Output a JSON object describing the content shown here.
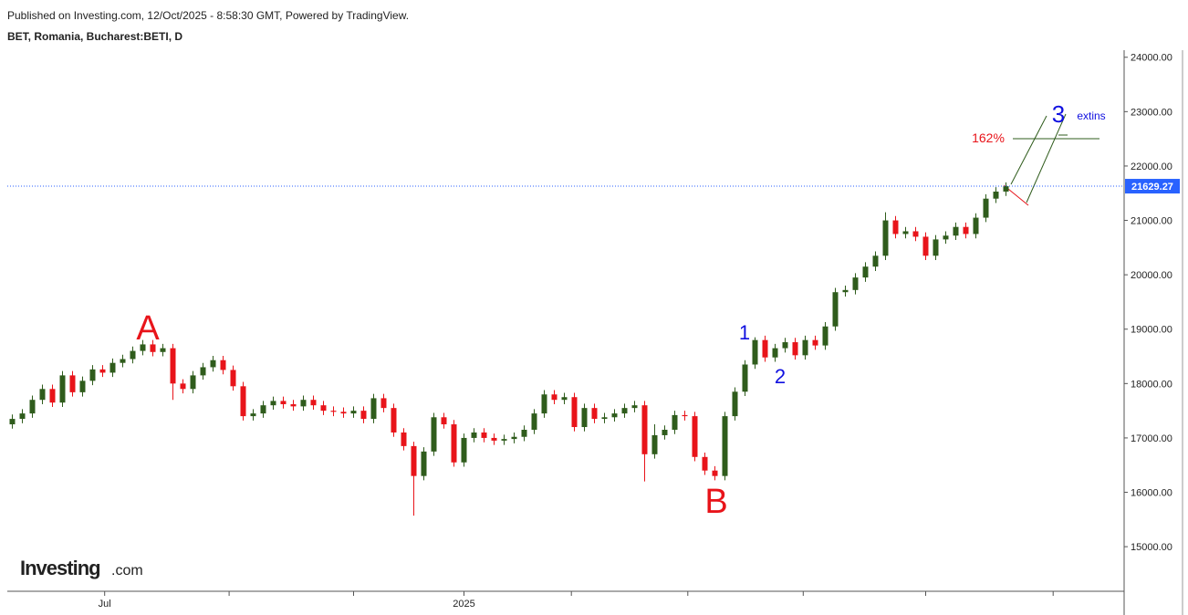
{
  "header": {
    "published": "Published on Investing.com, 12/Oct/2025 - 8:58:30 GMT, Powered by TradingView.",
    "symbol": "BET, Romania, Bucharest:BETI, D"
  },
  "logo": {
    "main": "Investing",
    "suffix": ".com"
  },
  "chart_data": {
    "type": "candlestick",
    "up_color": "#2f5c1c",
    "down_color": "#e8141a",
    "xlim": [
      -0.5,
      110.5
    ],
    "xticks": [
      {
        "value": 9.2,
        "label": "Jul"
      },
      {
        "value": 21.6,
        "label": null
      },
      {
        "value": 34.0,
        "label": null
      },
      {
        "value": 45.0,
        "label": "2025"
      },
      {
        "value": 55.7,
        "label": null
      },
      {
        "value": 67.3,
        "label": null
      },
      {
        "value": 78.8,
        "label": null
      },
      {
        "value": 91.0,
        "label": null
      },
      {
        "value": 103.7,
        "label": null
      }
    ],
    "ylim": [
      14180,
      24130
    ],
    "yticks": [
      {
        "value": 15000,
        "label": "15000.00"
      },
      {
        "value": 16000,
        "label": "16000.00"
      },
      {
        "value": 17000,
        "label": "17000.00"
      },
      {
        "value": 18000,
        "label": "18000.00"
      },
      {
        "value": 19000,
        "label": "19000.00"
      },
      {
        "value": 20000,
        "label": "20000.00"
      },
      {
        "value": 21000,
        "label": "21000.00"
      },
      {
        "value": 22000,
        "label": "22000.00"
      },
      {
        "value": 23000,
        "label": "23000.00"
      },
      {
        "value": 24000,
        "label": "24000.00"
      }
    ],
    "open": [
      17250,
      17350,
      17450,
      17700,
      17900,
      17650,
      18150,
      17840,
      18050,
      18260,
      18200,
      18380,
      18450,
      18600,
      18720,
      18580,
      18650,
      18000,
      17900,
      18150,
      18300,
      18430,
      18250,
      17950,
      17400,
      17450,
      17600,
      17680,
      17620,
      17580,
      17700,
      17600,
      17500,
      17480,
      17450,
      17500,
      17350,
      17730,
      17550,
      17100,
      16850,
      16300,
      16750,
      17380,
      17250,
      16550,
      17000,
      17100,
      17000,
      16950,
      16980,
      17020,
      17150,
      17450,
      17800,
      17700,
      17750,
      17200,
      17550,
      17350,
      17380,
      17450,
      17550,
      17600,
      16700,
      17050,
      17150,
      17420,
      17400,
      16650,
      16400,
      16300,
      17400,
      17850,
      18350,
      18800,
      18480,
      18650,
      18760,
      18520,
      18800,
      18700,
      19050,
      19680,
      19720,
      19950,
      20150,
      20350,
      21000,
      20750,
      20800,
      20700,
      20350,
      20650,
      20720,
      20880,
      20750,
      21050,
      21400,
      21530
    ],
    "high": [
      17430,
      17530,
      17780,
      17980,
      17980,
      18230,
      18230,
      18130,
      18340,
      18340,
      18460,
      18530,
      18680,
      18800,
      18800,
      18730,
      18730,
      18080,
      18230,
      18380,
      18510,
      18510,
      18330,
      18030,
      17530,
      17680,
      17760,
      17760,
      17700,
      17780,
      17780,
      17680,
      17580,
      17560,
      17580,
      17580,
      17810,
      17810,
      17630,
      17180,
      16930,
      16830,
      17460,
      17460,
      17330,
      17080,
      17180,
      17180,
      17080,
      17060,
      17100,
      17230,
      17530,
      17880,
      17880,
      17830,
      17830,
      17630,
      17630,
      17460,
      17530,
      17630,
      17680,
      17680,
      17250,
      17230,
      17500,
      17500,
      17480,
      16730,
      16480,
      17480,
      17930,
      18430,
      18850,
      18880,
      18730,
      18840,
      18840,
      18880,
      18880,
      19130,
      19760,
      19800,
      20030,
      20230,
      20430,
      21150,
      21080,
      20880,
      20880,
      20780,
      20730,
      20800,
      20960,
      20960,
      21130,
      21480,
      21610,
      21700
    ],
    "low": [
      17170,
      17270,
      17370,
      17620,
      17570,
      17570,
      17760,
      17760,
      17970,
      18120,
      18120,
      18300,
      18370,
      18520,
      18500,
      18500,
      17700,
      17820,
      17820,
      18070,
      18220,
      18170,
      17870,
      17320,
      17320,
      17370,
      17520,
      17540,
      17500,
      17500,
      17520,
      17420,
      17400,
      17370,
      17370,
      17270,
      17270,
      17470,
      17020,
      16770,
      15570,
      16220,
      16670,
      17170,
      16470,
      16470,
      16920,
      16920,
      16870,
      16870,
      16900,
      16940,
      17070,
      17370,
      17620,
      17620,
      17120,
      17120,
      17270,
      17270,
      17300,
      17370,
      17470,
      16200,
      16620,
      16970,
      17070,
      17320,
      16570,
      16320,
      16220,
      16220,
      17320,
      17770,
      18270,
      18400,
      18400,
      18570,
      18440,
      18440,
      18620,
      18620,
      18970,
      19600,
      19640,
      19870,
      20070,
      20270,
      20670,
      20670,
      20620,
      20270,
      20270,
      20570,
      20640,
      20670,
      20670,
      20970,
      21320,
      21450
    ],
    "close": [
      17350,
      17450,
      17700,
      17900,
      17650,
      18150,
      17840,
      18050,
      18260,
      18200,
      18380,
      18450,
      18600,
      18720,
      18580,
      18650,
      18000,
      17900,
      18150,
      18300,
      18430,
      18250,
      17950,
      17400,
      17450,
      17600,
      17680,
      17620,
      17580,
      17700,
      17600,
      17500,
      17480,
      17450,
      17500,
      17350,
      17730,
      17550,
      17100,
      16850,
      16300,
      16750,
      17380,
      17250,
      16550,
      17000,
      17100,
      17000,
      16950,
      16980,
      17020,
      17150,
      17450,
      17800,
      17700,
      17750,
      17200,
      17550,
      17350,
      17380,
      17450,
      17550,
      17600,
      16700,
      17050,
      17150,
      17420,
      17400,
      16650,
      16400,
      16300,
      17400,
      17850,
      18350,
      18800,
      18480,
      18650,
      18760,
      18520,
      18800,
      18700,
      19050,
      19680,
      19720,
      19950,
      20150,
      20350,
      21000,
      20750,
      20800,
      20700,
      20350,
      20650,
      20720,
      20880,
      20750,
      21050,
      21400,
      21530,
      21629.27
    ],
    "last_price_color": "#2962ff",
    "annotations": [
      {
        "text": "A",
        "color": "#e8141a"
      },
      {
        "text": "B",
        "color": "#e8141a"
      },
      {
        "text": "1",
        "color": "#1010e0"
      },
      {
        "text": "2",
        "color": "#1010e0"
      },
      {
        "text": "3",
        "color": "#1010e0"
      },
      {
        "text": "extins",
        "color": "#1010e0"
      },
      {
        "text": "162%",
        "color": "#e8141a"
      }
    ]
  }
}
